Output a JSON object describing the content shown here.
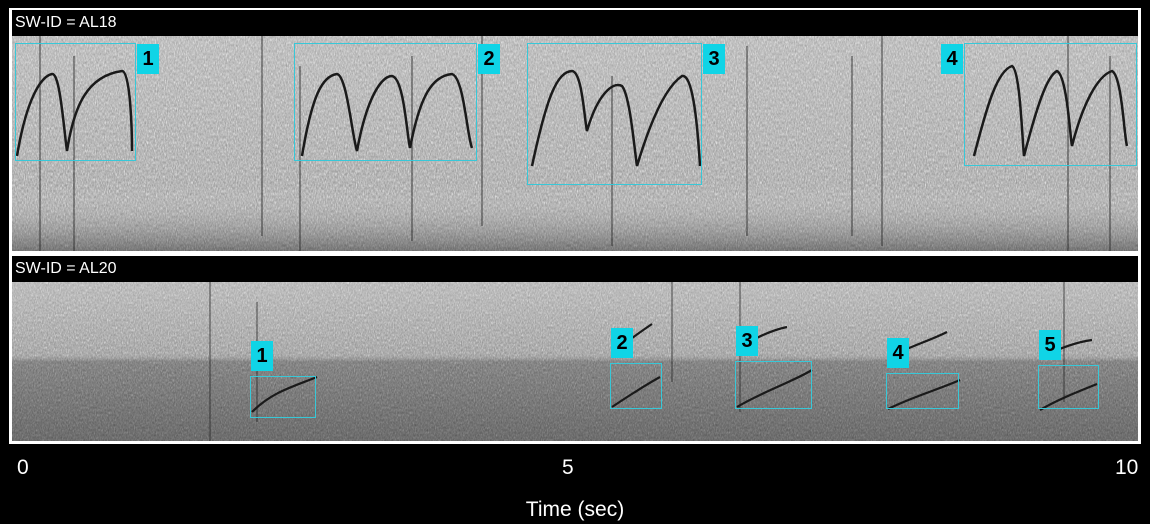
{
  "panels": [
    {
      "id": "top",
      "label": "SW-ID = AL18",
      "selections": [
        {
          "number": "1"
        },
        {
          "number": "2"
        },
        {
          "number": "3"
        },
        {
          "number": "4"
        }
      ]
    },
    {
      "id": "bottom",
      "label": "SW-ID = AL20",
      "selections": [
        {
          "number": "1"
        },
        {
          "number": "2"
        },
        {
          "number": "3"
        },
        {
          "number": "4"
        },
        {
          "number": "5"
        }
      ]
    }
  ],
  "axis": {
    "ticks": [
      "0",
      "5",
      "10"
    ],
    "label": "Time (sec)"
  },
  "colors": {
    "box": "#37c8d8",
    "label_bg": "#10d4e6",
    "background": "#000000"
  }
}
